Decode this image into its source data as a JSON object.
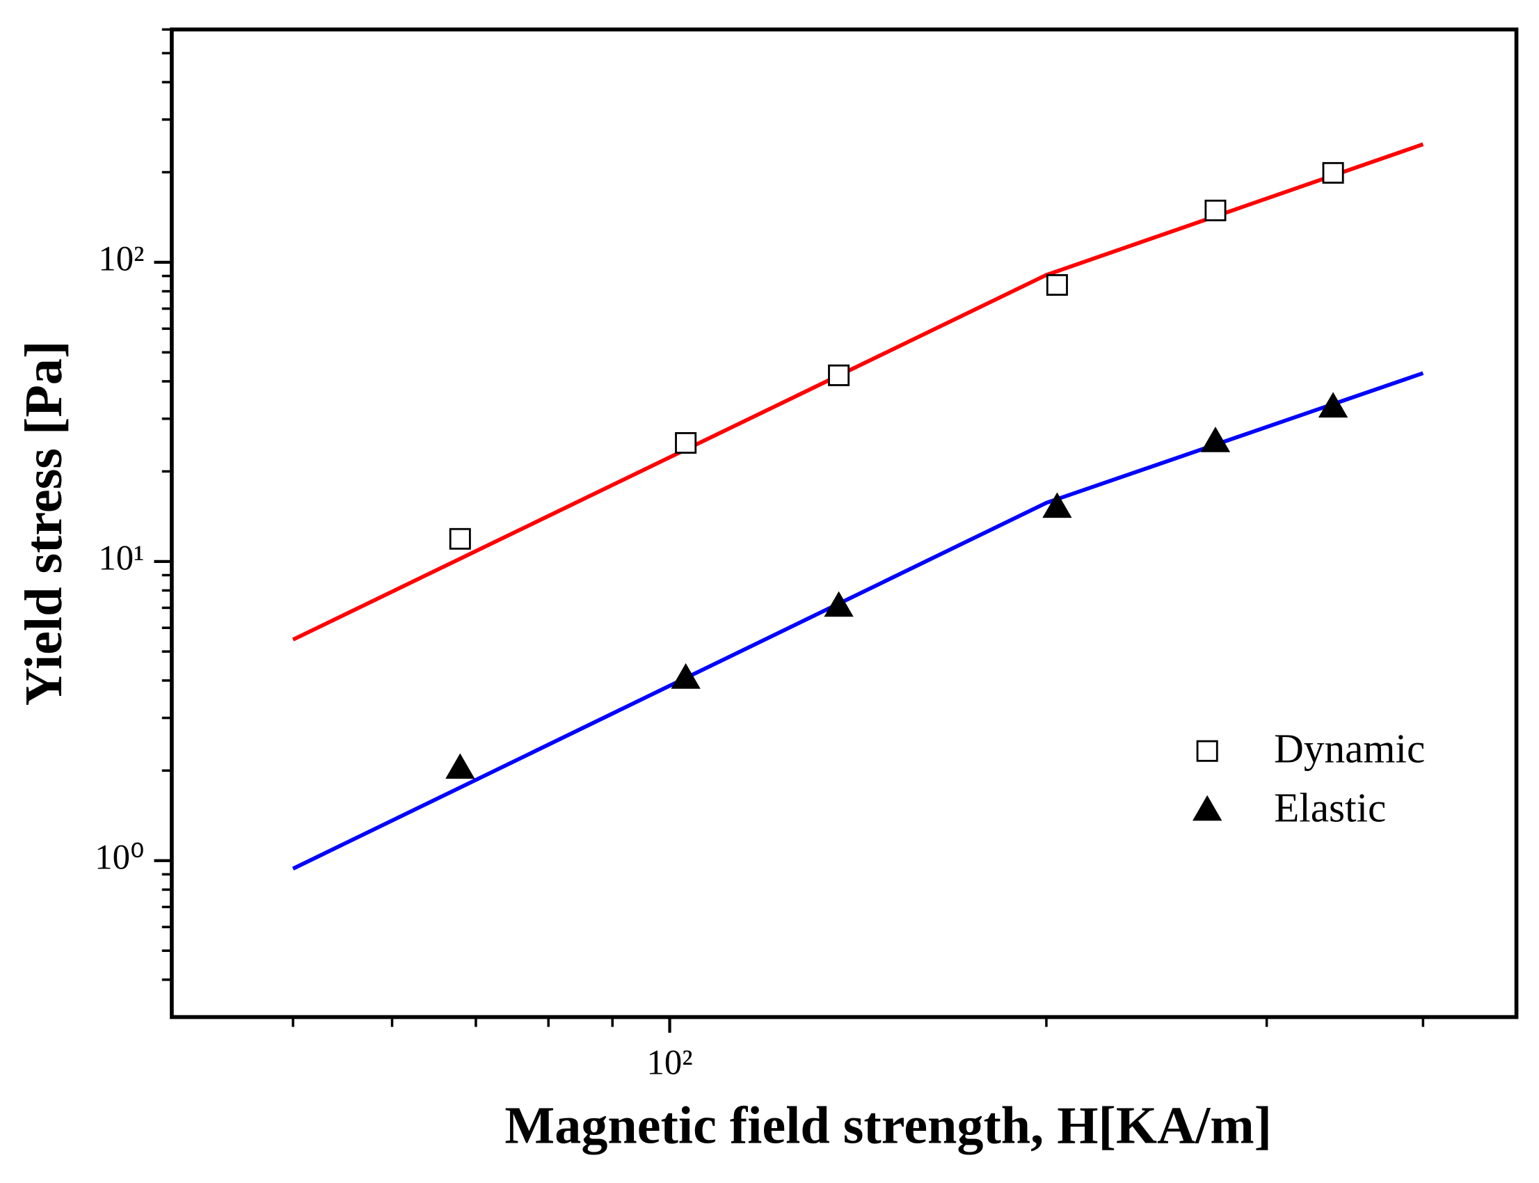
{
  "chart_data": {
    "type": "scatter",
    "xlabel": "Magnetic field strength, H[KA/m]",
    "ylabel": "Yield stress [Pa]",
    "xscale": "log",
    "yscale": "log",
    "xlim": [
      40,
      475
    ],
    "ylim": [
      0.3,
      600
    ],
    "xticks": [
      {
        "value": 100,
        "label": "10²"
      }
    ],
    "xminor": [
      50,
      60,
      70,
      80,
      90,
      200,
      300,
      400
    ],
    "yticks": [
      {
        "value": 1,
        "label": "10⁰"
      },
      {
        "value": 10,
        "label": "10¹"
      },
      {
        "value": 100,
        "label": "10²"
      }
    ],
    "yminor": [
      0.4,
      0.5,
      0.6,
      0.7,
      0.8,
      0.9,
      2,
      3,
      4,
      5,
      6,
      7,
      8,
      9,
      20,
      30,
      40,
      50,
      60,
      70,
      80,
      90,
      200,
      300,
      400,
      500,
      600
    ],
    "x": [
      68,
      103,
      136.5,
      204,
      273,
      339
    ],
    "series": [
      {
        "name": "Dynamic",
        "marker": "square",
        "color": "#000000",
        "values": [
          11.9,
          24.9,
          41.9,
          84,
          149,
          199
        ]
      },
      {
        "name": "Elastic",
        "marker": "triangle",
        "color": "#000000",
        "values": [
          2.04,
          4.08,
          7.1,
          15.2,
          25.2,
          32.9
        ]
      }
    ],
    "fits": [
      {
        "color": "#ff0000",
        "x": [
          50,
          200,
          400
        ],
        "values": [
          5.48,
          90.7,
          248
        ]
      },
      {
        "color": "#0000ff",
        "x": [
          50,
          200,
          400
        ],
        "values": [
          0.94,
          15.7,
          42.6
        ]
      }
    ],
    "legend": "right"
  }
}
